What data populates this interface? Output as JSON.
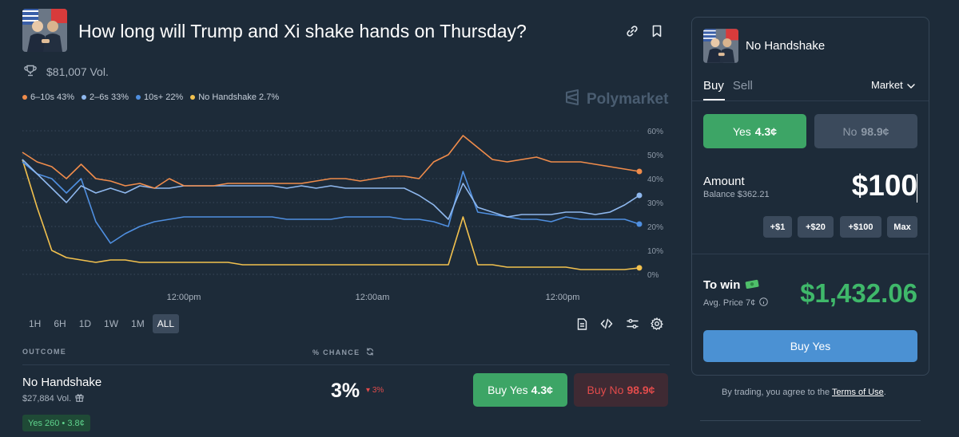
{
  "market": {
    "title": "How long will Trump and Xi shake hands on Thursday?",
    "volume": "$81,007 Vol."
  },
  "legend": [
    {
      "label": "6–10s 43%",
      "color": "#f08c4b"
    },
    {
      "label": "2–6s 33%",
      "color": "#8fb8ee"
    },
    {
      "label": "10s+ 22%",
      "color": "#4f8fe0"
    },
    {
      "label": "No Handshake 2.7%",
      "color": "#f2c14e"
    }
  ],
  "watermark": "Polymarket",
  "chart_data": {
    "type": "line",
    "ylim": [
      0,
      60
    ],
    "yticks": [
      "60%",
      "50%",
      "40%",
      "30%",
      "20%",
      "10%",
      "0%"
    ],
    "xticks": [
      "12:00pm",
      "12:00am",
      "12:00pm"
    ],
    "series": [
      {
        "name": "6–10s",
        "color": "#f08c4b",
        "values": [
          51,
          47,
          45,
          40,
          46,
          40,
          39,
          37,
          38,
          36,
          40,
          37,
          37,
          37,
          38,
          38,
          38,
          38,
          38,
          38,
          39,
          40,
          40,
          39,
          40,
          41,
          41,
          40,
          47,
          50,
          58,
          53,
          48,
          47,
          48,
          49,
          47,
          47,
          47,
          46,
          45,
          44,
          43
        ]
      },
      {
        "name": "2–6s",
        "color": "#8fb8ee",
        "values": [
          48,
          42,
          36,
          30,
          37,
          34,
          36,
          34,
          37,
          36,
          36,
          37,
          37,
          37,
          37,
          37,
          37,
          37,
          36,
          37,
          36,
          37,
          36,
          36,
          36,
          36,
          36,
          33,
          29,
          23,
          38,
          28,
          26,
          24,
          25,
          25,
          25,
          26,
          26,
          25,
          26,
          29,
          33
        ]
      },
      {
        "name": "10s+",
        "color": "#4f8fe0",
        "values": [
          47,
          42,
          40,
          34,
          40,
          22,
          13,
          17,
          20,
          22,
          23,
          24,
          24,
          24,
          24,
          24,
          24,
          24,
          23,
          23,
          23,
          23,
          24,
          24,
          24,
          24,
          23,
          23,
          22,
          20,
          43,
          26,
          25,
          24,
          23,
          23,
          22,
          24,
          23,
          23,
          23,
          23,
          21
        ]
      },
      {
        "name": "No Handshake",
        "color": "#f2c14e",
        "values": [
          48,
          28,
          10,
          7,
          6,
          5,
          6,
          6,
          5,
          5,
          5,
          5,
          5,
          5,
          5,
          4,
          4,
          4,
          4,
          4,
          4,
          4,
          4,
          4,
          4,
          4,
          4,
          4,
          4,
          4,
          24,
          4,
          4,
          3,
          3,
          3,
          3,
          3,
          2,
          2,
          2,
          2,
          2.7
        ]
      }
    ]
  },
  "ranges": [
    "1H",
    "6H",
    "1D",
    "1W",
    "1M",
    "ALL"
  ],
  "table": {
    "col_outcome": "OUTCOME",
    "col_chance": "% CHANCE"
  },
  "outcome": {
    "name": "No Handshake",
    "volume": "$27,884 Vol.",
    "chance": "3%",
    "delta": "3%",
    "buy_yes_label": "Buy Yes",
    "buy_yes_price": "4.3¢",
    "buy_no_label": "Buy No",
    "buy_no_price": "98.9¢",
    "position": "Yes 260 • 3.8¢"
  },
  "panel": {
    "title": "No Handshake",
    "tab_buy": "Buy",
    "tab_sell": "Sell",
    "order_type": "Market",
    "yes_label": "Yes",
    "yes_price": "4.3¢",
    "no_label": "No",
    "no_price": "98.9¢",
    "amount_label": "Amount",
    "balance": "Balance $362.21",
    "amount": "$100",
    "quick": [
      "+$1",
      "+$20",
      "+$100",
      "Max"
    ],
    "to_win_label": "To win",
    "avg_price": "Avg. Price 7¢",
    "to_win_value": "$1,432.06",
    "buy_button": "Buy Yes"
  },
  "terms": {
    "prefix": "By trading, you agree to the ",
    "link": "Terms of Use",
    "suffix": "."
  }
}
